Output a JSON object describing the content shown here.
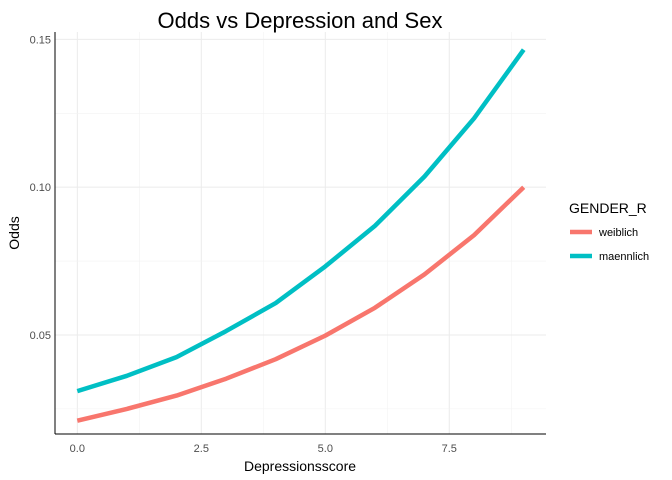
{
  "chart_data": {
    "type": "line",
    "title": "Odds vs Depression and Sex",
    "xlabel": "Depressionsscore",
    "ylabel": "Odds",
    "xlim": [
      -0.45,
      9.45
    ],
    "ylim": [
      0.0165,
      0.1525
    ],
    "xticks": [
      0.0,
      2.5,
      5.0,
      7.5
    ],
    "xtick_labels": [
      "0.0",
      "2.5",
      "5.0",
      "7.5"
    ],
    "yticks": [
      0.05,
      0.1,
      0.15
    ],
    "ytick_labels": [
      "0.05",
      "0.10",
      "0.15"
    ],
    "grid": true,
    "legend": {
      "title": "GENDER_R",
      "placement": "right"
    },
    "x": [
      0,
      1,
      2,
      3,
      4,
      5,
      6,
      7,
      8,
      9
    ],
    "series": [
      {
        "name": "weiblich",
        "color": "#f8766d",
        "values": [
          0.021,
          0.025,
          0.0295,
          0.0352,
          0.0418,
          0.0498,
          0.0592,
          0.0705,
          0.0838,
          0.1
        ]
      },
      {
        "name": "maennlich",
        "color": "#00bfc4",
        "values": [
          0.031,
          0.0362,
          0.0425,
          0.0513,
          0.0608,
          0.0732,
          0.0869,
          0.1036,
          0.1233,
          0.1465
        ]
      }
    ]
  }
}
